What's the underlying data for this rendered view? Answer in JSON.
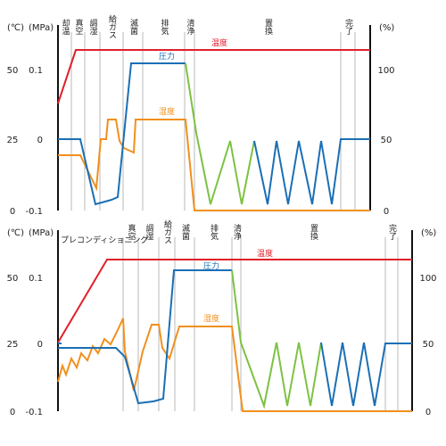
{
  "chart_data": [
    {
      "type": "line",
      "left_axis_units": [
        "(℃)",
        "(MPa)"
      ],
      "right_axis_unit": "(%)",
      "temp_ticks": [
        "50",
        "25",
        "0"
      ],
      "pressure_ticks": [
        "0.1",
        "0",
        "-0.1"
      ],
      "humidity_ticks": [
        "100",
        "50",
        "0"
      ],
      "pressure_range": [
        -0.1,
        0.1
      ],
      "humidity_range": [
        0,
        100
      ],
      "phases": [
        "却温",
        "真空",
        "調湿",
        "給ガス",
        "滅菌",
        "排気",
        "清浄",
        "置換",
        "完了"
      ],
      "annotations": {
        "temperature": "温度",
        "pressure": "圧力",
        "humidity": "湿度"
      },
      "colors": {
        "temperature": "#e0202a",
        "pressure": "#1a6fb5",
        "humidity": "#f0901e",
        "exhaust": "#7dc242",
        "axis": "#111111",
        "grid": "#b8b8b8"
      },
      "series": [
        {
          "name": "温度",
          "points": [
            [
              0,
              0.4
            ],
            [
              0.06,
              1.0
            ],
            [
              1.0,
              1.0
            ]
          ]
        },
        {
          "name": "圧力",
          "points": [
            [
              0,
              0
            ],
            [
              0.07,
              0
            ],
            [
              0.11,
              -0.09
            ],
            [
              0.17,
              -0.085
            ],
            [
              0.2,
              0.085
            ],
            [
              0.35,
              0.085
            ],
            [
              0.85,
              0.0
            ],
            [
              0.89,
              -0.095
            ],
            [
              0.92,
              0
            ],
            [
              1.0,
              0
            ]
          ]
        },
        {
          "name": "湿度",
          "points": [
            [
              0,
              36
            ],
            [
              0.07,
              36
            ],
            [
              0.1,
              18
            ],
            [
              0.12,
              46
            ],
            [
              0.15,
              66
            ],
            [
              0.17,
              66
            ],
            [
              0.2,
              40
            ],
            [
              0.35,
              66
            ],
            [
              0.385,
              66
            ],
            [
              0.4,
              0
            ],
            [
              1.0,
              0
            ]
          ]
        }
      ]
    },
    {
      "type": "line",
      "left_axis_units": [
        "(℃)",
        "(MPa)"
      ],
      "right_axis_unit": "(%)",
      "temp_ticks": [
        "50",
        "25",
        "0"
      ],
      "pressure_ticks": [
        "0.1",
        "0",
        "-0.1"
      ],
      "humidity_ticks": [
        "100",
        "50",
        "0"
      ],
      "pressure_range": [
        -0.1,
        0.1
      ],
      "humidity_range": [
        0,
        100
      ],
      "phases": [
        "プレコンディショニング",
        "真空",
        "調湿",
        "給ガス",
        "滅菌",
        "排気",
        "清浄",
        "置換",
        "完了"
      ],
      "annotations": {
        "temperature": "温度",
        "pressure": "圧力",
        "humidity": "湿度"
      },
      "colors": {
        "temperature": "#e0202a",
        "pressure": "#1a6fb5",
        "humidity": "#f0901e",
        "exhaust": "#7dc242",
        "axis": "#111111",
        "grid": "#b8b8b8"
      },
      "series": [
        {
          "name": "温度",
          "points": [
            [
              0,
              0.4
            ],
            [
              0.14,
              1.0
            ],
            [
              1.0,
              1.0
            ]
          ]
        },
        {
          "name": "圧力",
          "points": [
            [
              0,
              0
            ],
            [
              0.18,
              0
            ],
            [
              0.22,
              -0.09
            ],
            [
              0.28,
              -0.085
            ],
            [
              0.31,
              0.085
            ],
            [
              0.45,
              0.085
            ],
            [
              0.88,
              0
            ],
            [
              0.92,
              -0.095
            ],
            [
              0.94,
              0
            ],
            [
              1.0,
              0
            ]
          ]
        },
        {
          "name": "湿度",
          "points": [
            [
              0,
              48
            ],
            [
              0.18,
              48
            ],
            [
              0.2,
              14
            ],
            [
              0.25,
              56
            ],
            [
              0.3,
              66
            ],
            [
              0.33,
              66
            ],
            [
              0.36,
              40
            ],
            [
              0.46,
              66
            ],
            [
              0.5,
              66
            ],
            [
              0.51,
              0
            ],
            [
              1.0,
              0
            ]
          ]
        }
      ]
    }
  ]
}
